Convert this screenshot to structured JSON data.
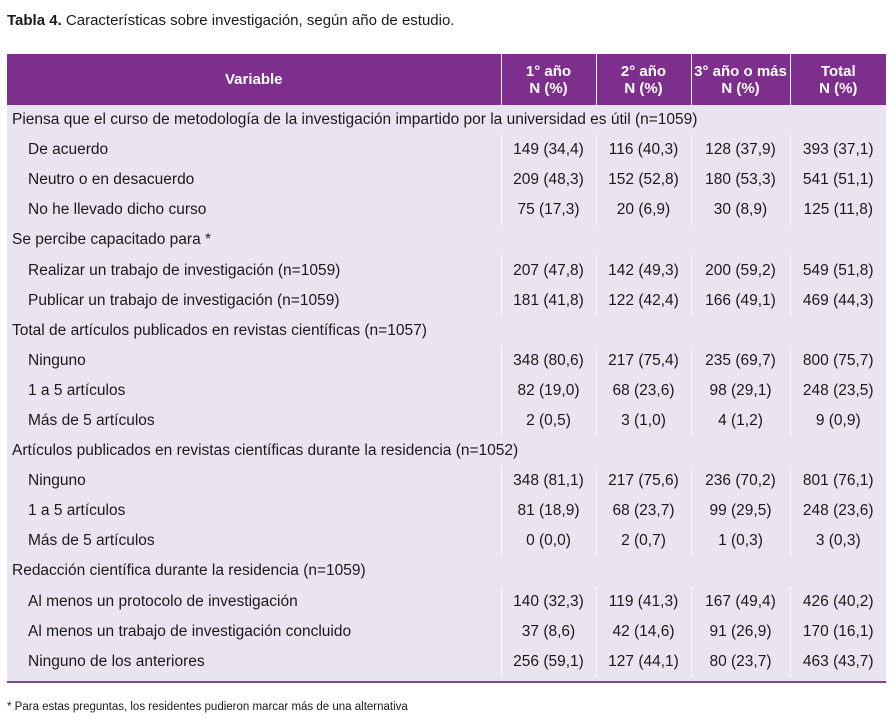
{
  "caption": {
    "label": "Tabla 4.",
    "text": " Características sobre investigación, según año de estudio."
  },
  "colors": {
    "header_bg": "#7e2f8e",
    "body_bg": "#eae4f0",
    "header_text": "#ffffff"
  },
  "header": {
    "variable": "Variable",
    "cols": [
      {
        "line1": "1° año",
        "line2": "N (%)"
      },
      {
        "line1": "2° año",
        "line2": "N (%)"
      },
      {
        "line1": "3° año o más",
        "line2": "N (%)"
      },
      {
        "line1": "Total",
        "line2": "N (%)"
      }
    ]
  },
  "sections": [
    {
      "title": "Piensa que el curso de metodología de la investigación impartido por la universidad es útil (n=1059)",
      "rows": [
        {
          "label": "De acuerdo",
          "values": [
            "149 (34,4)",
            "116 (40,3)",
            "128 (37,9)",
            "393 (37,1)"
          ]
        },
        {
          "label": "Neutro o en desacuerdo",
          "values": [
            "209 (48,3)",
            "152 (52,8)",
            "180 (53,3)",
            "541 (51,1)"
          ]
        },
        {
          "label": "No he llevado dicho curso",
          "values": [
            "75 (17,3)",
            "20 (6,9)",
            "30 (8,9)",
            "125 (11,8)"
          ]
        }
      ]
    },
    {
      "title": "Se percibe capacitado para *",
      "rows": [
        {
          "label": "Realizar un trabajo de investigación (n=1059)",
          "values": [
            "207 (47,8)",
            "142 (49,3)",
            "200 (59,2)",
            "549 (51,8)"
          ]
        },
        {
          "label": "Publicar un trabajo de investigación (n=1059)",
          "values": [
            "181 (41,8)",
            "122 (42,4)",
            "166 (49,1)",
            "469 (44,3)"
          ]
        }
      ]
    },
    {
      "title": "Total de artículos publicados en revistas científicas (n=1057)",
      "rows": [
        {
          "label": "Ninguno",
          "values": [
            "348 (80,6)",
            "217 (75,4)",
            "235 (69,7)",
            "800 (75,7)"
          ]
        },
        {
          "label": "1 a 5 artículos",
          "values": [
            "82 (19,0)",
            "68 (23,6)",
            "98 (29,1)",
            "248 (23,5)"
          ]
        },
        {
          "label": "Más de 5 artículos",
          "values": [
            "2 (0,5)",
            "3 (1,0)",
            "4 (1,2)",
            "9 (0,9)"
          ]
        }
      ]
    },
    {
      "title": "Artículos publicados en revistas científicas durante la residencia (n=1052)",
      "rows": [
        {
          "label": "Ninguno",
          "values": [
            "348 (81,1)",
            "217 (75,6)",
            "236 (70,2)",
            "801 (76,1)"
          ]
        },
        {
          "label": "1 a 5 artículos",
          "values": [
            "81 (18,9)",
            "68 (23,7)",
            "99 (29,5)",
            "248 (23,6)"
          ]
        },
        {
          "label": "Más de 5 artículos",
          "values": [
            "0 (0,0)",
            "2 (0,7)",
            "1 (0,3)",
            "3 (0,3)"
          ]
        }
      ]
    },
    {
      "title": "Redacción científica durante la residencia (n=1059)",
      "rows": [
        {
          "label": "Al menos un protocolo de investigación",
          "values": [
            "140 (32,3)",
            "119 (41,3)",
            "167 (49,4)",
            "426 (40,2)"
          ]
        },
        {
          "label": "Al menos un trabajo de investigación concluido",
          "values": [
            "37 (8,6)",
            "42 (14,6)",
            "91 (26,9)",
            "170 (16,1)"
          ]
        },
        {
          "label": "Ninguno de los anteriores",
          "values": [
            "256 (59,1)",
            "127 (44,1)",
            "80 (23,7)",
            "463 (43,7)"
          ]
        }
      ]
    }
  ],
  "footnote": "* Para estas preguntas, los residentes pudieron marcar más de una alternativa"
}
